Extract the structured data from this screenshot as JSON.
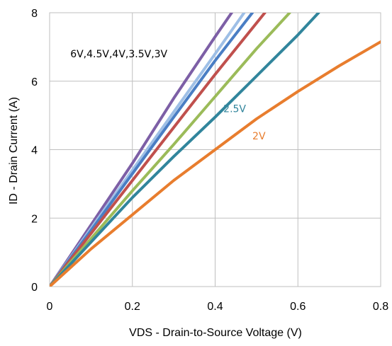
{
  "chart_data": {
    "type": "line",
    "title": "",
    "xlabel": "VDS - Drain-to-Source Voltage (V)",
    "ylabel": "ID - Drain Current (A)",
    "xlim": [
      0,
      0.8
    ],
    "ylim": [
      0,
      8
    ],
    "xticks": [
      "0",
      "0.2",
      "0.4",
      "0.6",
      "0.8"
    ],
    "yticks": [
      "0",
      "2",
      "4",
      "6",
      "8"
    ],
    "grid": true,
    "legend": "none",
    "series": [
      {
        "color": "#7d5fa6",
        "x": [
          0,
          0.05,
          0.1,
          0.2,
          0.3,
          0.4,
          0.44
        ],
        "y": [
          0,
          0.9,
          1.8,
          3.6,
          5.5,
          7.3,
          8.0
        ]
      },
      {
        "color": "#9ebfe6",
        "x": [
          0,
          0.05,
          0.1,
          0.2,
          0.3,
          0.4,
          0.47
        ],
        "y": [
          0,
          0.85,
          1.7,
          3.4,
          5.1,
          6.8,
          8.0
        ]
      },
      {
        "color": "#4a7ec4",
        "x": [
          0,
          0.05,
          0.1,
          0.2,
          0.3,
          0.4,
          0.49
        ],
        "y": [
          0,
          0.82,
          1.64,
          3.3,
          4.95,
          6.6,
          8.0
        ]
      },
      {
        "color": "#c0504d",
        "x": [
          0,
          0.05,
          0.1,
          0.2,
          0.3,
          0.4,
          0.52
        ],
        "y": [
          0,
          0.78,
          1.55,
          3.1,
          4.65,
          6.2,
          8.0
        ]
      },
      {
        "color": "#9bbb59",
        "x": [
          0,
          0.05,
          0.1,
          0.2,
          0.3,
          0.4,
          0.5,
          0.58
        ],
        "y": [
          0,
          0.7,
          1.4,
          2.8,
          4.15,
          5.55,
          6.95,
          8.0
        ]
      },
      {
        "color": "#31859c",
        "x": [
          0,
          0.05,
          0.1,
          0.2,
          0.3,
          0.4,
          0.5,
          0.6,
          0.65
        ],
        "y": [
          0,
          0.65,
          1.3,
          2.6,
          3.8,
          4.95,
          6.15,
          7.35,
          8.0
        ]
      },
      {
        "color": "#e87d2e",
        "x": [
          0,
          0.05,
          0.1,
          0.2,
          0.3,
          0.4,
          0.5,
          0.6,
          0.7,
          0.8
        ],
        "y": [
          0,
          0.55,
          1.1,
          2.1,
          3.1,
          4.0,
          4.9,
          5.7,
          6.45,
          7.15
        ]
      }
    ],
    "annotations": [
      {
        "text": "6V,4.5V,4V,3.5V,3V",
        "x": 0.05,
        "y": 6.7,
        "color": "#000000"
      },
      {
        "text": "2.5V",
        "x": 0.42,
        "y": 5.1,
        "color": "#31859c"
      },
      {
        "text": "2V",
        "x": 0.49,
        "y": 4.3,
        "color": "#e87d2e"
      }
    ]
  }
}
